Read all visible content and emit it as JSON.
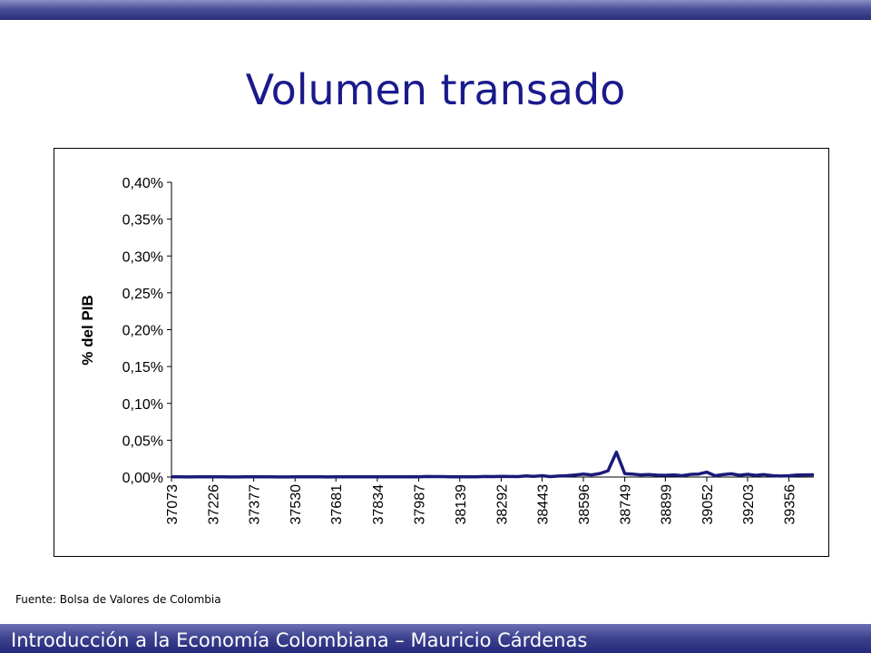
{
  "slide": {
    "title": "Volumen transado",
    "source": "Fuente: Bolsa de Valores de Colombia",
    "footer": "Introducción a la Economía Colombiana – Mauricio Cárdenas"
  },
  "colors": {
    "title": "#1a1a8c",
    "series_line": "#1a1a7a",
    "bars": "#2a2f7a"
  },
  "chart_data": {
    "type": "line",
    "title": "",
    "xlabel": "",
    "ylabel": "% del PIB",
    "ylim": [
      0,
      0.4
    ],
    "yticks": [
      0,
      0.05,
      0.1,
      0.15,
      0.2,
      0.25,
      0.3,
      0.35,
      0.4
    ],
    "ytick_labels": [
      "0,00%",
      "0,05%",
      "0,10%",
      "0,15%",
      "0,20%",
      "0,25%",
      "0,30%",
      "0,35%",
      "0,40%"
    ],
    "xticks": [
      37073,
      37226,
      37377,
      37530,
      37681,
      37834,
      37987,
      38139,
      38292,
      38443,
      38596,
      38749,
      38899,
      39052,
      39203,
      39356
    ],
    "xlim": [
      37073,
      39448
    ],
    "grid": false,
    "legend": "none",
    "series": [
      {
        "x": [
          37073,
          37103,
          37134,
          37165,
          37195,
          37226,
          37256,
          37287,
          37318,
          37346,
          37377,
          37407,
          37438,
          37468,
          37499,
          37530,
          37560,
          37591,
          37622,
          37650,
          37681,
          37711,
          37742,
          37772,
          37803,
          37834,
          37864,
          37895,
          37926,
          37956,
          37987,
          38017,
          38048,
          38078,
          38109,
          38139,
          38169,
          38200,
          38231,
          38261,
          38292,
          38322,
          38353,
          38384,
          38412,
          38443,
          38473,
          38504,
          38534,
          38565,
          38596,
          38626,
          38657,
          38687,
          38718,
          38749,
          38777,
          38808,
          38838,
          38869,
          38899,
          38930,
          38961,
          38991,
          39022,
          39052,
          39083,
          39114,
          39142,
          39173,
          39203,
          39234,
          39264,
          39295,
          39326,
          39356,
          39387,
          39417,
          39448
        ],
        "values": [
          0.0002,
          0.0002,
          0.0001,
          0.0002,
          0.0002,
          0.0002,
          0.0002,
          0.0001,
          0.0001,
          0.0002,
          0.0002,
          0.0002,
          0.0002,
          0.0001,
          0.0001,
          0.0002,
          0.0002,
          0.0004,
          0.0002,
          0.0001,
          0.0002,
          0.0002,
          0.0002,
          0.0002,
          0.0002,
          0.0002,
          0.0002,
          0.0002,
          0.0003,
          0.0005,
          0.0004,
          0.0007,
          0.0006,
          0.0006,
          0.0004,
          0.0004,
          0.0004,
          0.0003,
          0.0007,
          0.0006,
          0.001,
          0.0008,
          0.0006,
          0.0015,
          0.001,
          0.0019,
          0.0006,
          0.0014,
          0.0019,
          0.0027,
          0.0039,
          0.003,
          0.0048,
          0.0085,
          0.0337,
          0.0046,
          0.0039,
          0.003,
          0.0035,
          0.0026,
          0.0024,
          0.003,
          0.0019,
          0.0036,
          0.0041,
          0.0066,
          0.0019,
          0.0034,
          0.0044,
          0.0025,
          0.0037,
          0.0024,
          0.0033,
          0.0018,
          0.0014,
          0.0019,
          0.0027,
          0.003,
          0.0031
        ]
      }
    ]
  }
}
